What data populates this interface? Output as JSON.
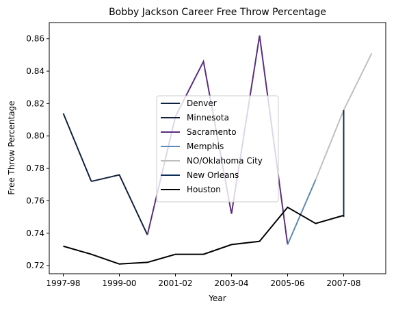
{
  "chart_data": {
    "type": "line",
    "title": "Bobby Jackson  Career Free Throw Percentage",
    "xlabel": "Year",
    "ylabel": "Free Throw Percentage",
    "x_tick_labels": [
      "1997-98",
      "1999-00",
      "2001-02",
      "2003-04",
      "2005-06",
      "2007-08"
    ],
    "x": [
      "1997-98",
      "1998-99",
      "1999-00",
      "2000-01",
      "2001-02",
      "2002-03",
      "2003-04",
      "2004-05",
      "2005-06",
      "2006-07",
      "2007-08",
      "2008-09"
    ],
    "xlim": [
      -0.5,
      11.5
    ],
    "ylim": [
      0.715,
      0.87
    ],
    "yticks": [
      0.72,
      0.74,
      0.76,
      0.78,
      0.8,
      0.82,
      0.84,
      0.86
    ],
    "legend_position": "center",
    "series": [
      {
        "name": "Denver",
        "color": "#0e2240",
        "x": [
          "1997-98",
          "1998-99"
        ],
        "values": [
          0.814,
          0.772
        ]
      },
      {
        "name": "Minnesota",
        "color": "#14213a",
        "x": [
          "1998-99",
          "1999-00",
          "2000-01"
        ],
        "values": [
          0.772,
          0.776,
          0.739
        ]
      },
      {
        "name": "Sacramento",
        "color": "#5a2d81",
        "x": [
          "2000-01",
          "2001-02",
          "2002-03",
          "2003-04",
          "2004-05",
          "2005-06"
        ],
        "values": [
          0.739,
          0.812,
          0.846,
          0.752,
          0.862,
          0.733
        ]
      },
      {
        "name": "Memphis",
        "color": "#5d89b6",
        "x": [
          "2005-06",
          "2006-07"
        ],
        "values": [
          0.733,
          0.773
        ]
      },
      {
        "name": "NO/Oklahoma City",
        "color": "#bfbfbf",
        "x": [
          "2006-07",
          "2007-08",
          "2008-09"
        ],
        "values": [
          0.773,
          0.816,
          0.851
        ]
      },
      {
        "name": "New Orleans",
        "color": "#0c2d55",
        "x": [
          "2007-08",
          "2007-08"
        ],
        "values": [
          0.816,
          0.75
        ]
      },
      {
        "name": "Houston",
        "color": "#000000",
        "x": [
          "1997-98",
          "1998-99",
          "1999-00",
          "2000-01",
          "2001-02",
          "2002-03",
          "2003-04",
          "2004-05",
          "2005-06",
          "2006-07",
          "2007-08"
        ],
        "values": [
          0.732,
          0.727,
          0.721,
          0.722,
          0.727,
          0.727,
          0.733,
          0.735,
          0.756,
          0.746,
          0.751
        ]
      }
    ]
  }
}
